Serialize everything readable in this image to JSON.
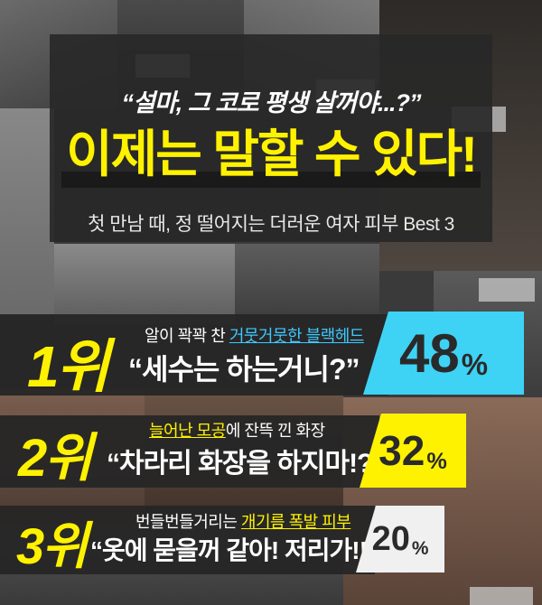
{
  "header": {
    "quote": "“설마, 그 코로 평생 살꺼야...?”",
    "headline": "이제는 말할 수 있다!",
    "subtitle": "첫 만남 때, 정 떨어지는 더러운 여자 피부 Best 3"
  },
  "ranks": [
    {
      "rank": "1위",
      "desc_pre": "알이 꽉꽉 찬 ",
      "desc_hl": "거뭇거뭇한 블랙헤드",
      "desc_post": "",
      "quote": "“세수는 하는거니?”",
      "percent_value": "48",
      "percent_sign": "%",
      "accent": "#3ed3f5"
    },
    {
      "rank": "2위",
      "desc_pre": "",
      "desc_hl": "늘어난 모공",
      "desc_post": "에 잔뜩 낀 화장",
      "quote": "“차라리 화장을 하지마!?”",
      "percent_value": "32",
      "percent_sign": "%",
      "accent": "#fff200"
    },
    {
      "rank": "3위",
      "desc_pre": "번들번들거리는 ",
      "desc_hl": "개기름 폭발 피부",
      "desc_post": "",
      "quote": "“옷에 묻을꺼 같아! 저리가!!”",
      "percent_value": "20",
      "percent_sign": "%",
      "accent": "#f0f0f0"
    }
  ],
  "colors": {
    "headline": "#fff200",
    "rank_label": "#fff200",
    "panel": "#262626"
  }
}
